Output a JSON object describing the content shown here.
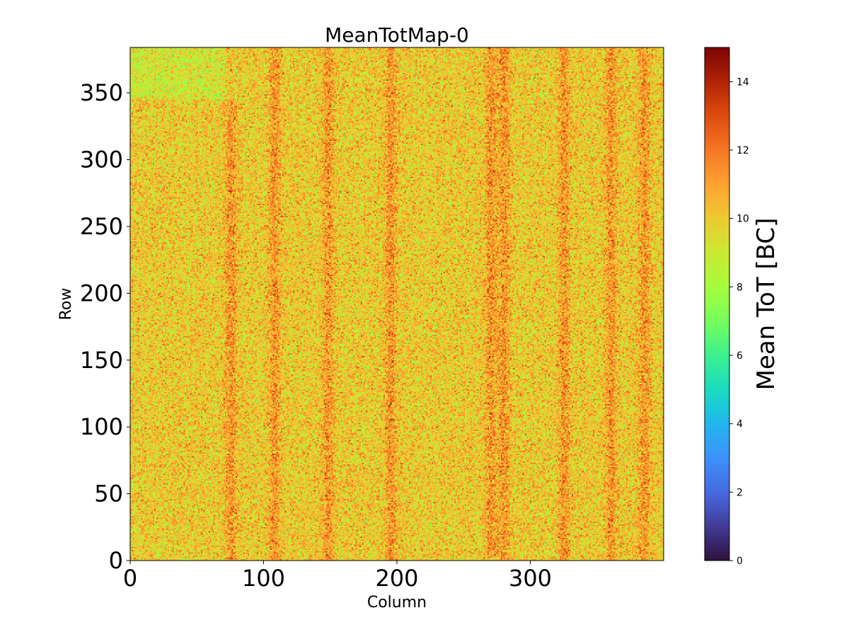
{
  "chart_data": {
    "type": "heatmap",
    "title": "MeanTotMap-0",
    "xlabel": "Column",
    "ylabel": "Row",
    "xlim": [
      0,
      400
    ],
    "ylim": [
      0,
      384
    ],
    "x_ticks": [
      0,
      100,
      200,
      300
    ],
    "y_ticks": [
      0,
      50,
      100,
      150,
      200,
      250,
      300,
      350
    ],
    "colorbar": {
      "label": "Mean ToT [BC]",
      "min": 0,
      "max": 15,
      "ticks": [
        0,
        2,
        4,
        6,
        8,
        10,
        12,
        14
      ],
      "colormap": "turbo"
    },
    "value_summary": {
      "typical_range": [
        7,
        13
      ],
      "dominant_value": 10,
      "higher_value_column_bands": [
        75,
        108,
        148,
        195,
        270,
        280,
        325,
        360,
        385
      ]
    }
  }
}
